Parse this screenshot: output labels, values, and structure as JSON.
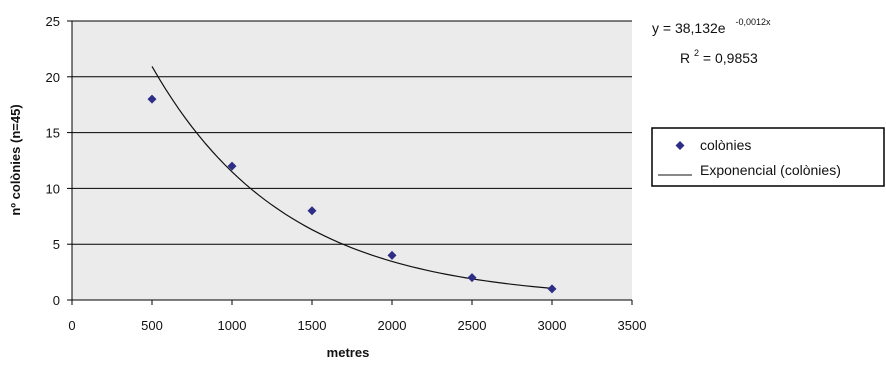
{
  "chart_data": {
    "type": "scatter",
    "title": "",
    "xlabel": "metres",
    "ylabel": "nº colònies (n=45)",
    "xlim": [
      0,
      3500
    ],
    "ylim": [
      0,
      25
    ],
    "x_ticks": [
      "0",
      "500",
      "1000",
      "1500",
      "2000",
      "2500",
      "3000",
      "3500"
    ],
    "y_ticks": [
      "0",
      "5",
      "10",
      "15",
      "20",
      "25"
    ],
    "grid": "horizontal",
    "legend_position": "right",
    "series": [
      {
        "name": "colònies",
        "kind": "points",
        "marker": "diamond",
        "color": "#2e2e86",
        "x": [
          500,
          1000,
          1500,
          2000,
          2500,
          3000
        ],
        "y": [
          18,
          12,
          8,
          4,
          2,
          1
        ]
      },
      {
        "name": "Exponencial (colònies)",
        "kind": "trendline",
        "color": "#111111",
        "model": "exponential",
        "a": 38.132,
        "b": -0.0012,
        "x_range": [
          500,
          3000
        ]
      }
    ],
    "annotations": {
      "equation_main": "y = 38,132e",
      "equation_exponent": "-0,0012x",
      "r2_label": "R",
      "r2_superscript": "2",
      "r2_value": " = 0,9853"
    },
    "colors": {
      "plot_background": "#ebebeb",
      "gridline": "#000000",
      "marker": "#2e2e86"
    }
  }
}
